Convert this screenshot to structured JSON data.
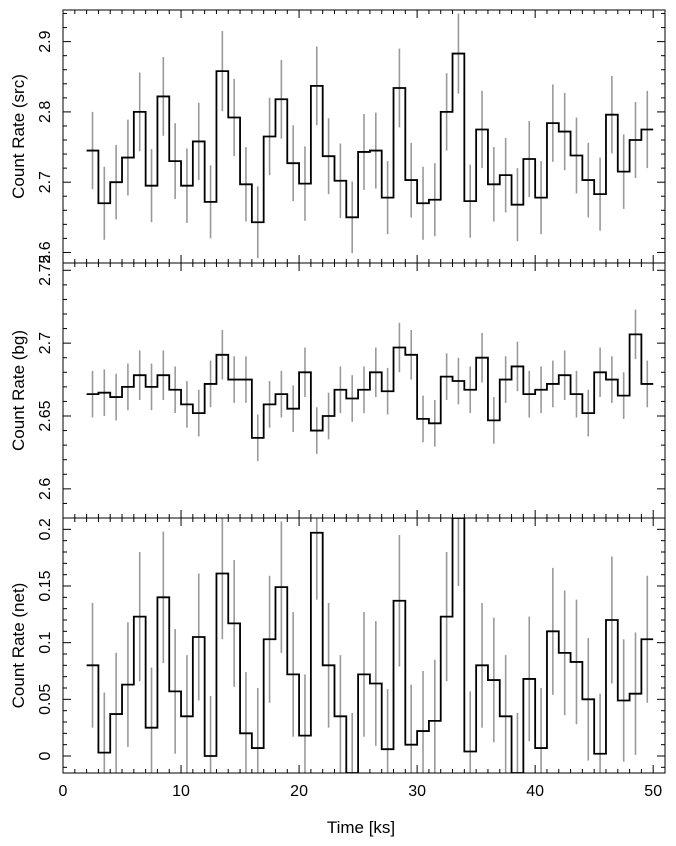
{
  "chart_data": {
    "type": "line",
    "xlabel": "Time [ks]",
    "xlim": [
      0,
      51
    ],
    "xticks": [
      0,
      10,
      20,
      30,
      40,
      50
    ],
    "bin_width_ks": 1.0,
    "errorbar_color": "#999999",
    "line_color": "#000000",
    "panels": [
      {
        "id": "src",
        "ylabel": "Count Rate (src)",
        "ylim": [
          2.585,
          2.945
        ],
        "yticks": [
          2.6,
          2.7,
          2.8,
          2.9
        ],
        "ytick_labels": [
          "2.6",
          "2.7",
          "2.8",
          "2.9"
        ],
        "x": [
          2.5,
          3.5,
          4.5,
          5.5,
          6.5,
          7.5,
          8.5,
          9.5,
          10.5,
          11.5,
          12.5,
          13.5,
          14.5,
          15.5,
          16.5,
          17.5,
          18.5,
          19.5,
          20.5,
          21.5,
          22.5,
          23.5,
          24.5,
          25.5,
          26.5,
          27.5,
          28.5,
          29.5,
          30.5,
          31.5,
          32.5,
          33.5,
          34.5,
          35.5,
          36.5,
          37.5,
          38.5,
          39.5,
          40.5,
          41.5,
          42.5,
          43.5,
          44.5,
          45.5,
          46.5,
          47.5,
          48.5,
          49.5
        ],
        "values": [
          2.745,
          2.67,
          2.7,
          2.735,
          2.8,
          2.695,
          2.822,
          2.73,
          2.695,
          2.758,
          2.672,
          2.858,
          2.792,
          2.697,
          2.643,
          2.765,
          2.818,
          2.727,
          2.698,
          2.837,
          2.737,
          2.702,
          2.65,
          2.743,
          2.745,
          2.678,
          2.834,
          2.703,
          2.67,
          2.675,
          2.8,
          2.883,
          2.673,
          2.775,
          2.697,
          2.71,
          2.668,
          2.733,
          2.678,
          2.784,
          2.772,
          2.738,
          2.703,
          2.683,
          2.796,
          2.715,
          2.76,
          2.775
        ],
        "errors": [
          0.055,
          0.052,
          0.053,
          0.054,
          0.056,
          0.052,
          0.056,
          0.054,
          0.053,
          0.055,
          0.052,
          0.057,
          0.055,
          0.053,
          0.051,
          0.055,
          0.056,
          0.054,
          0.053,
          0.056,
          0.054,
          0.053,
          0.051,
          0.054,
          0.054,
          0.052,
          0.056,
          0.053,
          0.052,
          0.052,
          0.055,
          0.057,
          0.052,
          0.055,
          0.053,
          0.053,
          0.052,
          0.054,
          0.052,
          0.055,
          0.055,
          0.054,
          0.053,
          0.052,
          0.055,
          0.053,
          0.054,
          0.055
        ]
      },
      {
        "id": "bg",
        "ylabel": "Count Rate (bg)",
        "ylim": [
          2.58,
          2.755
        ],
        "yticks": [
          2.6,
          2.65,
          2.7,
          2.75
        ],
        "ytick_labels": [
          "2.6",
          "2.65",
          "2.7",
          "2.75"
        ],
        "x": [
          2.5,
          3.5,
          4.5,
          5.5,
          6.5,
          7.5,
          8.5,
          9.5,
          10.5,
          11.5,
          12.5,
          13.5,
          14.5,
          15.5,
          16.5,
          17.5,
          18.5,
          19.5,
          20.5,
          21.5,
          22.5,
          23.5,
          24.5,
          25.5,
          26.5,
          27.5,
          28.5,
          29.5,
          30.5,
          31.5,
          32.5,
          33.5,
          34.5,
          35.5,
          36.5,
          37.5,
          38.5,
          39.5,
          40.5,
          41.5,
          42.5,
          43.5,
          44.5,
          45.5,
          46.5,
          47.5,
          48.5,
          49.5
        ],
        "values": [
          2.665,
          2.666,
          2.663,
          2.67,
          2.678,
          2.67,
          2.678,
          2.668,
          2.658,
          2.652,
          2.672,
          2.692,
          2.675,
          2.675,
          2.635,
          2.658,
          2.665,
          2.655,
          2.68,
          2.64,
          2.65,
          2.668,
          2.662,
          2.668,
          2.68,
          2.667,
          2.697,
          2.692,
          2.648,
          2.645,
          2.677,
          2.674,
          2.668,
          2.69,
          2.647,
          2.675,
          2.684,
          2.665,
          2.668,
          2.672,
          2.678,
          2.665,
          2.652,
          2.68,
          2.675,
          2.664,
          2.706,
          2.672
        ],
        "errors": [
          0.016,
          0.016,
          0.016,
          0.016,
          0.017,
          0.016,
          0.017,
          0.016,
          0.016,
          0.016,
          0.016,
          0.017,
          0.016,
          0.016,
          0.016,
          0.016,
          0.016,
          0.016,
          0.017,
          0.016,
          0.016,
          0.016,
          0.016,
          0.016,
          0.017,
          0.016,
          0.017,
          0.017,
          0.016,
          0.016,
          0.016,
          0.016,
          0.016,
          0.017,
          0.016,
          0.016,
          0.017,
          0.016,
          0.016,
          0.016,
          0.017,
          0.016,
          0.016,
          0.017,
          0.016,
          0.016,
          0.017,
          0.016
        ]
      },
      {
        "id": "net",
        "ylabel": "Count Rate (net)",
        "ylim": [
          -0.015,
          0.21
        ],
        "yticks": [
          0,
          0.05,
          0.1,
          0.15,
          0.2
        ],
        "ytick_labels": [
          "0",
          "0.05",
          "0.1",
          "0.15",
          "0.2"
        ],
        "x": [
          2.5,
          3.5,
          4.5,
          5.5,
          6.5,
          7.5,
          8.5,
          9.5,
          10.5,
          11.5,
          12.5,
          13.5,
          14.5,
          15.5,
          16.5,
          17.5,
          18.5,
          19.5,
          20.5,
          21.5,
          22.5,
          23.5,
          24.5,
          25.5,
          26.5,
          27.5,
          28.5,
          29.5,
          30.5,
          31.5,
          32.5,
          33.5,
          34.5,
          35.5,
          36.5,
          37.5,
          38.5,
          39.5,
          40.5,
          41.5,
          42.5,
          43.5,
          44.5,
          45.5,
          46.5,
          47.5,
          48.5,
          49.5
        ],
        "values": [
          0.08,
          0.003,
          0.037,
          0.063,
          0.123,
          0.025,
          0.14,
          0.057,
          0.035,
          0.105,
          0.0,
          0.161,
          0.117,
          0.02,
          0.007,
          0.103,
          0.149,
          0.072,
          0.018,
          0.197,
          0.08,
          0.035,
          -0.015,
          0.072,
          0.064,
          0.006,
          0.137,
          0.01,
          0.022,
          0.031,
          0.123,
          0.21,
          0.004,
          0.08,
          0.067,
          0.035,
          -0.015,
          0.068,
          0.007,
          0.11,
          0.091,
          0.083,
          0.05,
          0.002,
          0.12,
          0.049,
          0.055,
          0.103
        ],
        "errors": [
          0.055,
          0.053,
          0.054,
          0.055,
          0.057,
          0.053,
          0.058,
          0.055,
          0.054,
          0.056,
          0.053,
          0.058,
          0.056,
          0.054,
          0.053,
          0.056,
          0.058,
          0.055,
          0.054,
          0.059,
          0.055,
          0.054,
          0.053,
          0.055,
          0.055,
          0.053,
          0.058,
          0.053,
          0.053,
          0.054,
          0.057,
          0.06,
          0.053,
          0.055,
          0.055,
          0.054,
          0.053,
          0.055,
          0.053,
          0.056,
          0.055,
          0.055,
          0.054,
          0.053,
          0.056,
          0.054,
          0.054,
          0.056
        ]
      }
    ]
  }
}
